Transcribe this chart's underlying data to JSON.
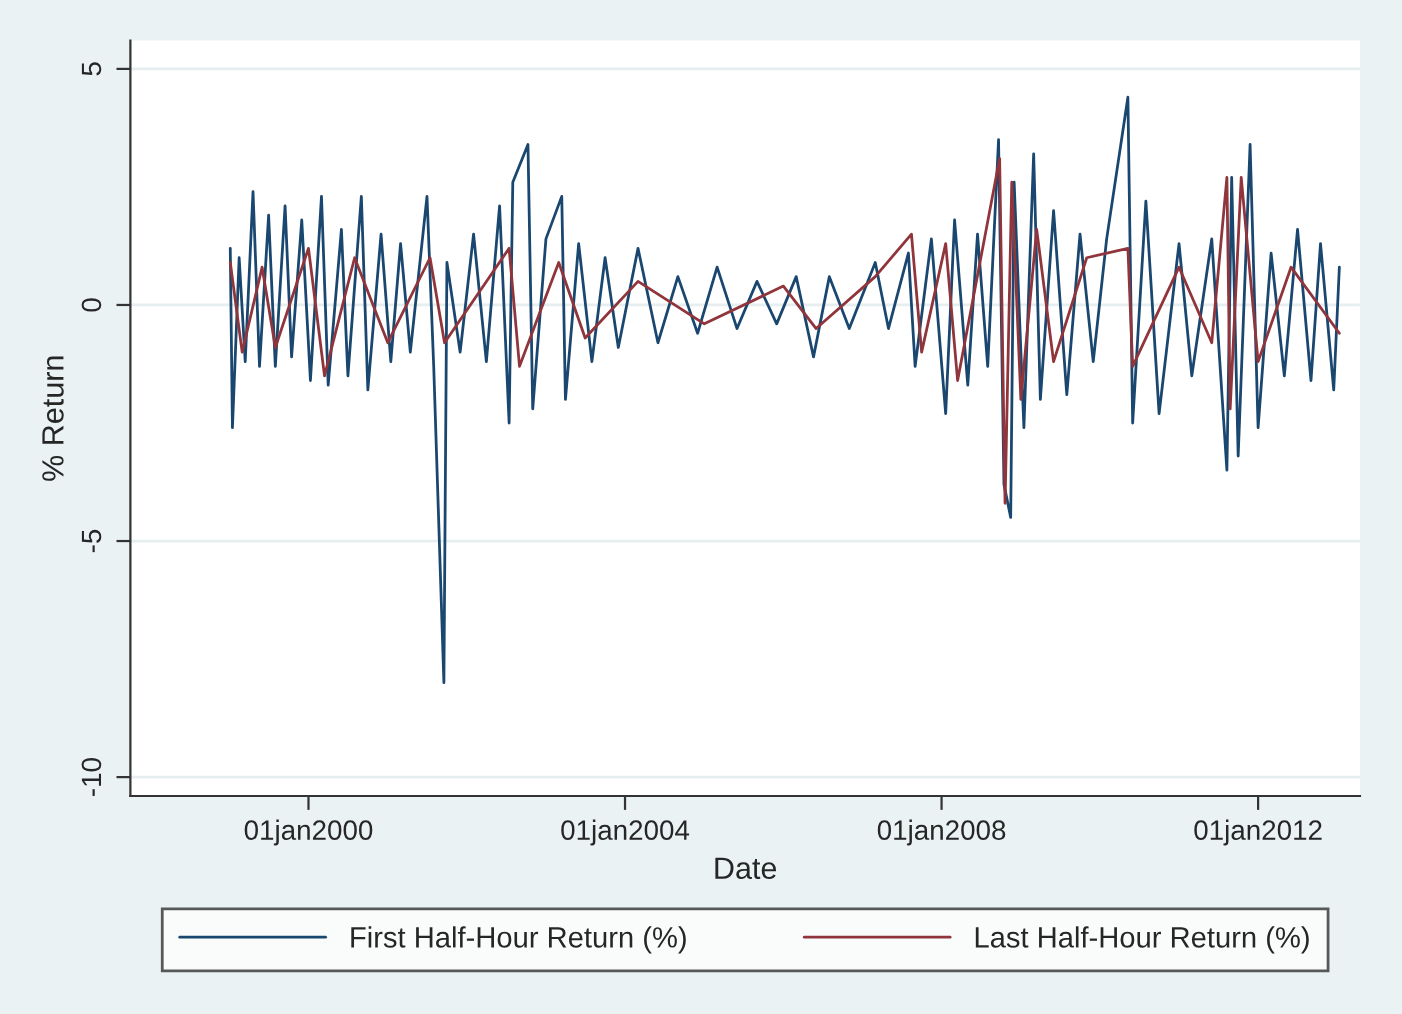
{
  "chart_data": {
    "type": "line",
    "xlabel": "Date",
    "ylabel": "% Return",
    "xlim": [
      "1997-10-01",
      "2013-04-15"
    ],
    "xticks": [
      {
        "value": "2000-01-01",
        "label": "01jan2000"
      },
      {
        "value": "2004-01-01",
        "label": "01jan2004"
      },
      {
        "value": "2008-01-01",
        "label": "01jan2008"
      },
      {
        "value": "2012-01-01",
        "label": "01jan2012"
      }
    ],
    "ylim": [
      -10.4,
      5.6
    ],
    "yticks": [
      -10,
      -5,
      0,
      5
    ],
    "grid": "y",
    "legend": "bottom",
    "line_style": "solid",
    "marker": "none",
    "series": [
      {
        "name": "First Half-Hour Return (%)",
        "color": "#1a476f",
        "x": [
          "1999-01-05",
          "1999-01-15",
          "1999-02-15",
          "1999-03-15",
          "1999-04-20",
          "1999-05-20",
          "1999-07-01",
          "1999-08-01",
          "1999-09-15",
          "1999-10-15",
          "1999-12-01",
          "2000-01-10",
          "2000-03-01",
          "2000-04-01",
          "2000-06-01",
          "2000-07-01",
          "2000-09-01",
          "2000-10-01",
          "2000-12-01",
          "2001-01-15",
          "2001-03-01",
          "2001-04-15",
          "2001-07-01",
          "2001-08-01",
          "2001-09-17",
          "2001-10-01",
          "2001-12-01",
          "2002-02-01",
          "2002-04-01",
          "2002-06-01",
          "2002-07-15",
          "2002-08-01",
          "2002-10-10",
          "2002-11-01",
          "2003-01-01",
          "2003-03-15",
          "2003-04-01",
          "2003-06-01",
          "2003-08-01",
          "2003-10-01",
          "2003-12-01",
          "2004-03-01",
          "2004-06-01",
          "2004-09-01",
          "2004-12-01",
          "2005-03-01",
          "2005-06-01",
          "2005-09-01",
          "2005-12-01",
          "2006-03-01",
          "2006-05-20",
          "2006-08-01",
          "2006-11-01",
          "2007-03-01",
          "2007-05-01",
          "2007-08-01",
          "2007-09-01",
          "2007-11-15",
          "2008-01-20",
          "2008-03-01",
          "2008-05-01",
          "2008-06-15",
          "2008-08-01",
          "2008-09-20",
          "2008-10-15",
          "2008-11-15",
          "2008-12-01",
          "2009-01-15",
          "2009-03-01",
          "2009-04-01",
          "2009-06-01",
          "2009-08-01",
          "2009-10-01",
          "2009-12-01",
          "2010-02-01",
          "2010-05-10",
          "2010-06-01",
          "2010-08-01",
          "2010-10-01",
          "2011-01-01",
          "2011-03-01",
          "2011-06-01",
          "2011-08-10",
          "2011-09-01",
          "2011-10-01",
          "2011-11-25",
          "2012-01-01",
          "2012-03-01",
          "2012-05-01",
          "2012-07-01",
          "2012-09-01",
          "2012-10-15",
          "2012-12-15",
          "2013-01-10"
        ],
        "values": [
          1.2,
          -2.6,
          1.0,
          -1.2,
          2.4,
          -1.3,
          1.9,
          -1.3,
          2.1,
          -1.1,
          1.8,
          -1.6,
          2.3,
          -1.7,
          1.6,
          -1.5,
          2.3,
          -1.8,
          1.5,
          -1.2,
          1.3,
          -1.0,
          2.3,
          -1.3,
          -8.0,
          0.9,
          -1.0,
          1.5,
          -1.2,
          2.1,
          -2.5,
          2.6,
          3.4,
          -2.2,
          1.4,
          2.3,
          -2.0,
          1.3,
          -1.2,
          1.0,
          -0.9,
          1.2,
          -0.8,
          0.6,
          -0.6,
          0.8,
          -0.5,
          0.5,
          -0.4,
          0.6,
          -1.1,
          0.6,
          -0.5,
          0.9,
          -0.5,
          1.1,
          -1.3,
          1.4,
          -2.3,
          1.8,
          -1.7,
          1.5,
          -1.3,
          3.5,
          -3.8,
          -4.5,
          2.6,
          -2.6,
          3.2,
          -2.0,
          2.0,
          -1.9,
          1.5,
          -1.2,
          1.4,
          4.4,
          -2.5,
          2.2,
          -2.3,
          1.3,
          -1.5,
          1.4,
          -3.5,
          2.7,
          -3.2,
          3.4,
          -2.6,
          1.1,
          -1.5,
          1.6,
          -1.6,
          1.3,
          -1.8,
          0.8
        ]
      },
      {
        "name": "Last Half-Hour Return (%)",
        "color": "#90353b",
        "x": [
          "1999-01-05",
          "1999-03-01",
          "1999-06-01",
          "1999-08-01",
          "2000-01-01",
          "2000-03-15",
          "2000-08-01",
          "2001-01-01",
          "2001-07-15",
          "2001-09-20",
          "2002-07-15",
          "2002-09-01",
          "2003-03-01",
          "2003-07-01",
          "2004-03-01",
          "2005-01-01",
          "2006-01-01",
          "2006-06-01",
          "2007-03-01",
          "2007-08-15",
          "2007-10-01",
          "2008-01-20",
          "2008-03-15",
          "2008-09-25",
          "2008-10-20",
          "2008-11-20",
          "2009-01-01",
          "2009-03-15",
          "2009-06-01",
          "2009-11-01",
          "2010-05-10",
          "2010-06-01",
          "2011-01-01",
          "2011-06-01",
          "2011-08-10",
          "2011-08-25",
          "2011-10-15",
          "2012-01-01",
          "2012-06-01",
          "2013-01-10"
        ],
        "values": [
          0.9,
          -1.0,
          0.8,
          -0.9,
          1.2,
          -1.5,
          1.0,
          -0.8,
          1.0,
          -0.8,
          1.2,
          -1.3,
          0.9,
          -0.7,
          0.5,
          -0.4,
          0.4,
          -0.5,
          0.6,
          1.5,
          -1.0,
          1.3,
          -1.6,
          3.1,
          -4.2,
          2.6,
          -2.0,
          1.6,
          -1.2,
          1.0,
          1.2,
          -1.3,
          0.8,
          -0.8,
          2.7,
          -2.2,
          2.7,
          -1.2,
          0.8,
          -0.6
        ]
      }
    ]
  }
}
